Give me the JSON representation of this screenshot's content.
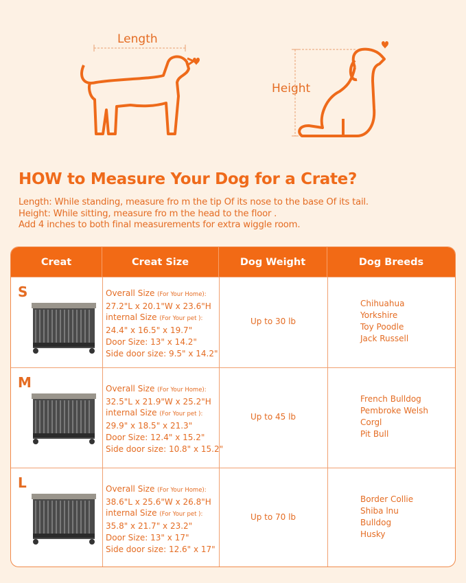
{
  "diagrams": {
    "length_label": "Length",
    "height_label": "Height"
  },
  "title": "HOW to Measure Your Dog for a Crate?",
  "instructions": [
    "Length: While standing, measure fro m the tip Of its nose to the base Of its tail.",
    "Height: While sitting, measure fro m the head to the floor .",
    "Add 4 inches to both final measurements for extra wiggle room."
  ],
  "colors": {
    "accent": "#f26a15",
    "background": "#fdf1e4",
    "text": "#e46c23"
  },
  "table": {
    "headers": [
      "Creat",
      "Creat Size",
      "Dog Weight",
      "Dog Breeds"
    ],
    "rows": [
      {
        "size": "S",
        "overall_label": "Overall Size",
        "overall_note": "(For Your Home):",
        "overall": "27.2\"L x 20.1\"W x 23.6\"H",
        "internal_label": "internal Size",
        "internal_note": "(For Your pet ):",
        "internal": "24.4\" x 16.5\" x 19.7\"",
        "door": "Door Size: 13\" x 14.2\"",
        "side_door": "Side door size: 9.5\" x 14.2\"",
        "weight": "Up to 30 lb",
        "breeds": [
          "Chihuahua",
          "Yorkshire",
          "Toy Poodle",
          "Jack Russell"
        ]
      },
      {
        "size": "M",
        "overall_label": "Overall Size",
        "overall_note": "(For Your Home):",
        "overall": "32.5\"L x 21.9\"W x 25.2\"H",
        "internal_label": "internal Size",
        "internal_note": "(For Your pet ):",
        "internal": "29.9\" x 18.5\" x 21.3\"",
        "door": "Door Size: 12.4\" x 15.2\"",
        "side_door": "Side door size: 10.8\" x 15.2\"",
        "weight": "Up to 45 lb",
        "breeds": [
          "French Bulldog",
          "Pembroke Welsh",
          "Corgl",
          "Pit Bull"
        ]
      },
      {
        "size": "L",
        "overall_label": "Overall Size",
        "overall_note": "(For Your Home):",
        "overall": "38.6\"L x 25.6\"W x 26.8\"H",
        "internal_label": "internal Size",
        "internal_note": "(For Your pet ):",
        "internal": "35.8\" x 21.7\" x 23.2\"",
        "door": "Door Size: 13\" x 17\"",
        "side_door": "Side door size: 12.6\" x 17\"",
        "weight": "Up to 70 lb",
        "breeds": [
          "Border Collie",
          "Shiba lnu",
          "Bulldog",
          "Husky"
        ]
      }
    ]
  }
}
